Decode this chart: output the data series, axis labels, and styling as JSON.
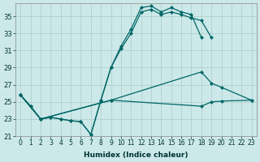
{
  "xlabel": "Humidex (Indice chaleur)",
  "background_color": "#cce8e8",
  "grid_color": "#aacccc",
  "line_color": "#006666",
  "xlim": [
    -0.5,
    23.5
  ],
  "ylim": [
    21,
    36.5
  ],
  "yticks": [
    21,
    23,
    25,
    27,
    29,
    31,
    33,
    35
  ],
  "xticks": [
    0,
    1,
    2,
    3,
    4,
    5,
    6,
    7,
    8,
    9,
    10,
    11,
    12,
    13,
    14,
    15,
    16,
    17,
    18,
    19,
    20,
    21,
    22,
    23
  ],
  "lines": [
    {
      "x": [
        0,
        1,
        2,
        3,
        4,
        5,
        6,
        7,
        8,
        9,
        10,
        11,
        12,
        13,
        14,
        15,
        16,
        17,
        18,
        19
      ],
      "y": [
        25.8,
        24.5,
        23.0,
        23.2,
        23.0,
        22.8,
        22.7,
        21.2,
        25.2,
        29.0,
        31.2,
        33.0,
        35.5,
        35.8,
        35.2,
        35.5,
        35.2,
        34.8,
        34.5,
        32.5
      ]
    },
    {
      "x": [
        0,
        1,
        2,
        3,
        4,
        5,
        6,
        7,
        8,
        9,
        10,
        11,
        12,
        13,
        14,
        15,
        16,
        17,
        18
      ],
      "y": [
        25.8,
        24.5,
        23.0,
        23.2,
        23.0,
        22.8,
        22.7,
        21.2,
        25.2,
        29.0,
        31.5,
        33.5,
        36.0,
        36.2,
        35.5,
        36.0,
        35.5,
        35.2,
        32.5
      ]
    },
    {
      "x": [
        0,
        2,
        9,
        18,
        19,
        20,
        23
      ],
      "y": [
        25.8,
        23.0,
        25.2,
        28.5,
        27.2,
        26.7,
        25.2
      ]
    },
    {
      "x": [
        0,
        2,
        9,
        18,
        19,
        20,
        23
      ],
      "y": [
        25.8,
        23.0,
        25.2,
        24.5,
        25.0,
        25.1,
        25.2
      ]
    }
  ]
}
